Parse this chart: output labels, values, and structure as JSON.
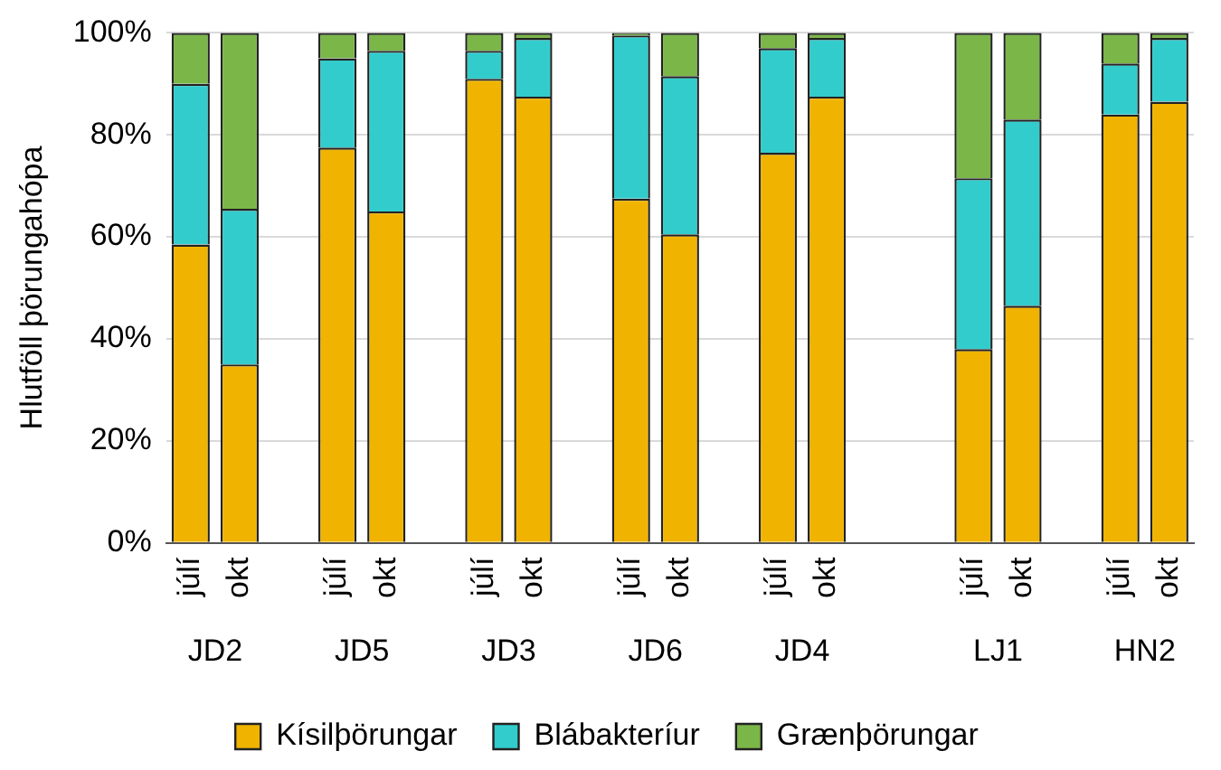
{
  "chart_data": {
    "type": "bar",
    "stacked": true,
    "ylabel": "Hlutföll þörungahópa",
    "categories": [
      "júlí",
      "okt",
      null,
      "júlí",
      "okt",
      null,
      "júlí",
      "okt",
      null,
      "júlí",
      "okt",
      null,
      "júlí",
      "okt",
      null,
      null,
      "júlí",
      "okt",
      null,
      "júlí",
      "okt"
    ],
    "annotations": [
      "JD2",
      "JD5",
      "JD3",
      "JD6",
      "JD4",
      "LJ1",
      "HN2"
    ],
    "series": [
      {
        "name": "Kísilþörungar",
        "color": "#f0b400",
        "values": [
          58.5,
          35,
          null,
          77.5,
          65,
          null,
          91,
          87.5,
          null,
          67.5,
          60.5,
          null,
          76.5,
          87.5,
          null,
          null,
          38,
          46.5,
          null,
          84,
          86.5
        ]
      },
      {
        "name": "Blábakteríur",
        "color": "#33cccc",
        "values": [
          31.5,
          30.5,
          null,
          17.5,
          31.5,
          null,
          5.5,
          11.5,
          null,
          32,
          31,
          null,
          20.5,
          11.5,
          null,
          null,
          33.5,
          36.5,
          null,
          10,
          12.5
        ]
      },
      {
        "name": "Grænþörungar",
        "color": "#7ab648",
        "values": [
          10,
          34.5,
          null,
          5,
          3.5,
          null,
          3.5,
          1,
          null,
          0.5,
          8.5,
          null,
          3,
          1,
          null,
          null,
          28.5,
          17,
          null,
          6,
          1
        ]
      }
    ],
    "ylim": [
      0,
      100
    ],
    "yticks": [
      {
        "value": 0,
        "label": "0%"
      },
      {
        "value": 20,
        "label": "20%"
      },
      {
        "value": 40,
        "label": "40%"
      },
      {
        "value": 60,
        "label": "60%"
      },
      {
        "value": 80,
        "label": "80%"
      },
      {
        "value": 100,
        "label": "100%"
      }
    ],
    "grid": "y",
    "legend": "bottom"
  }
}
